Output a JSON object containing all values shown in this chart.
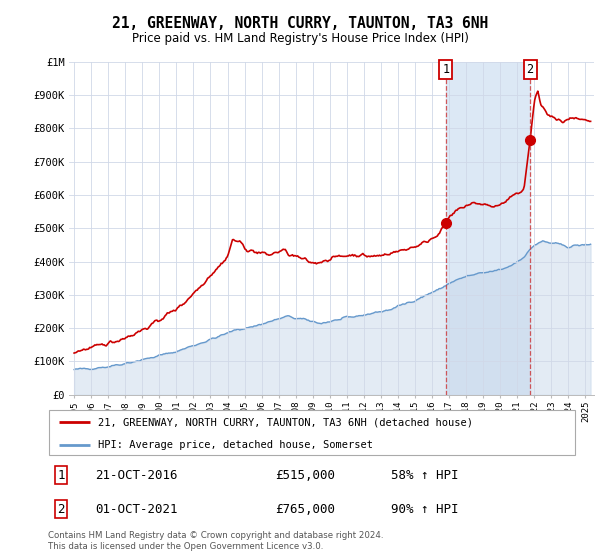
{
  "title": "21, GREENWAY, NORTH CURRY, TAUNTON, TA3 6NH",
  "subtitle": "Price paid vs. HM Land Registry's House Price Index (HPI)",
  "hpi_label": "HPI: Average price, detached house, Somerset",
  "price_label": "21, GREENWAY, NORTH CURRY, TAUNTON, TA3 6NH (detached house)",
  "footer1": "Contains HM Land Registry data © Crown copyright and database right 2024.",
  "footer2": "This data is licensed under the Open Government Licence v3.0.",
  "annotation1": {
    "num": "1",
    "date": "21-OCT-2016",
    "price": "£515,000",
    "hpi": "58% ↑ HPI"
  },
  "annotation2": {
    "num": "2",
    "date": "01-OCT-2021",
    "price": "£765,000",
    "hpi": "90% ↑ HPI"
  },
  "price_color": "#cc0000",
  "hpi_color": "#6699cc",
  "hpi_fill_color": "#c8d8eb",
  "highlight_fill_color": "#dce8f5",
  "vline_color": "#cc3333",
  "marker_color": "#cc0000",
  "ylim": [
    0,
    1000000
  ],
  "yticks": [
    0,
    100000,
    200000,
    300000,
    400000,
    500000,
    600000,
    700000,
    800000,
    900000,
    1000000
  ],
  "ytick_labels": [
    "£0",
    "£100K",
    "£200K",
    "£300K",
    "£400K",
    "£500K",
    "£600K",
    "£700K",
    "£800K",
    "£900K",
    "£1M"
  ],
  "xlim_left": 1994.7,
  "xlim_right": 2025.5,
  "vline1_x": 2016.8,
  "vline2_x": 2021.75,
  "sale1_x": 2016.8,
  "sale1_y": 515000,
  "sale2_x": 2021.75,
  "sale2_y": 765000,
  "background_color": "#ffffff",
  "grid_color": "#d0d8e8",
  "legend_edge_color": "#aaaaaa",
  "ann_box_edge_color": "#cc0000"
}
